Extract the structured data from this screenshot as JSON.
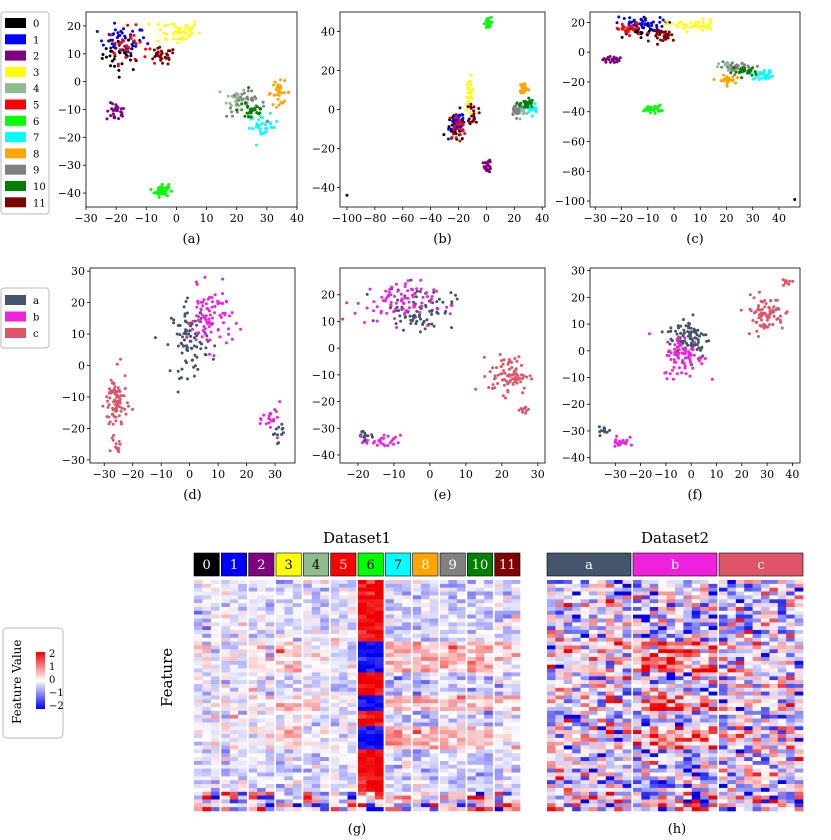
{
  "scatter_row1": {
    "legend": [
      {
        "label": "0",
        "color": "#000000"
      },
      {
        "label": "1",
        "color": "#0000ff"
      },
      {
        "label": "2",
        "color": "#800080"
      },
      {
        "label": "3",
        "color": "#ffff00"
      },
      {
        "label": "4",
        "color": "#8fbc8f"
      },
      {
        "label": "5",
        "color": "#ff0000"
      },
      {
        "label": "6",
        "color": "#00ff00"
      },
      {
        "label": "7",
        "color": "#00ffff"
      },
      {
        "label": "8",
        "color": "#ffa500"
      },
      {
        "label": "9",
        "color": "#808080"
      },
      {
        "label": "10",
        "color": "#008000"
      },
      {
        "label": "11",
        "color": "#800000"
      }
    ]
  },
  "scatter_row2": {
    "legend": [
      {
        "label": "a",
        "color": "#44546a"
      },
      {
        "label": "b",
        "color": "#ee22dd"
      },
      {
        "label": "c",
        "color": "#dd5566"
      }
    ]
  },
  "heatmaps": {
    "legend_title": "Feature Value",
    "legend_ticks": [
      "2",
      "1",
      "0",
      "−1",
      "−2"
    ],
    "y_label": "Feature"
  },
  "chart_data": [
    {
      "panel": "(a)",
      "type": "scatter",
      "xlim": [
        -30,
        40
      ],
      "ylim": [
        -45,
        25
      ],
      "xticks": [
        -30,
        -20,
        -10,
        0,
        10,
        20,
        30,
        40
      ],
      "xtick_labels": [
        "−30",
        "−20",
        "−10",
        "0",
        "10",
        "20",
        "30",
        "40"
      ],
      "yticks": [
        20,
        10,
        0,
        -10,
        -20,
        -30,
        -40
      ],
      "ytick_labels": [
        "20",
        "10",
        "0",
        "−10",
        "−20",
        "−30",
        "−40"
      ],
      "clusters": [
        {
          "label": "0",
          "cx": -18,
          "cy": 10,
          "sx": 4,
          "sy": 4,
          "n": 40
        },
        {
          "label": "1",
          "cx": -18,
          "cy": 15,
          "sx": 5,
          "sy": 3,
          "n": 40
        },
        {
          "label": "2",
          "cx": -20,
          "cy": -11,
          "sx": 2,
          "sy": 2,
          "n": 30
        },
        {
          "label": "3",
          "cx": 0,
          "cy": 18,
          "sx": 5,
          "sy": 3,
          "n": 45
        },
        {
          "label": "4",
          "cx": 20,
          "cy": -6,
          "sx": 2,
          "sy": 2.5,
          "n": 25
        },
        {
          "label": "5",
          "cx": -16,
          "cy": 13,
          "sx": 4,
          "sy": 4,
          "n": 30
        },
        {
          "label": "6",
          "cx": -5,
          "cy": -39,
          "sx": 1.5,
          "sy": 1.5,
          "n": 40
        },
        {
          "label": "7",
          "cx": 29,
          "cy": -16,
          "sx": 3,
          "sy": 2.5,
          "n": 30
        },
        {
          "label": "8",
          "cx": 34,
          "cy": -4,
          "sx": 2.5,
          "sy": 2.5,
          "n": 30
        },
        {
          "label": "9",
          "cx": 23,
          "cy": -8,
          "sx": 4,
          "sy": 3,
          "n": 30
        },
        {
          "label": "10",
          "cx": 25,
          "cy": -10,
          "sx": 3,
          "sy": 3,
          "n": 30
        },
        {
          "label": "11",
          "cx": -5,
          "cy": 9,
          "sx": 3,
          "sy": 2,
          "n": 30
        }
      ]
    },
    {
      "panel": "(b)",
      "type": "scatter",
      "xlim": [
        -105,
        42
      ],
      "ylim": [
        -50,
        50
      ],
      "xticks": [
        -100,
        -80,
        -60,
        -40,
        -20,
        0,
        20,
        40
      ],
      "xtick_labels": [
        "−100",
        "−80",
        "−60",
        "−40",
        "−20",
        "0",
        "20",
        "40"
      ],
      "yticks": [
        40,
        20,
        0,
        -20,
        -40
      ],
      "ytick_labels": [
        "40",
        "20",
        "0",
        "−20",
        "−40"
      ],
      "clusters": [
        {
          "label": "0",
          "cx": -22,
          "cy": -10,
          "sx": 4,
          "sy": 4,
          "n": 30
        },
        {
          "label": "1",
          "cx": -20,
          "cy": -7,
          "sx": 4,
          "sy": 4,
          "n": 35
        },
        {
          "label": "2",
          "cx": 1,
          "cy": -29,
          "sx": 1.5,
          "sy": 2,
          "n": 25
        },
        {
          "label": "3",
          "cx": -12,
          "cy": 8,
          "sx": 2,
          "sy": 5,
          "n": 30
        },
        {
          "label": "4",
          "cx": 25,
          "cy": 0,
          "sx": 2,
          "sy": 1.5,
          "n": 20
        },
        {
          "label": "5",
          "cx": -21,
          "cy": -9,
          "sx": 4,
          "sy": 4,
          "n": 25
        },
        {
          "label": "6",
          "cx": 1,
          "cy": 44,
          "sx": 1.5,
          "sy": 2,
          "n": 30
        },
        {
          "label": "7",
          "cx": 31,
          "cy": 1,
          "sx": 3,
          "sy": 3,
          "n": 30
        },
        {
          "label": "8",
          "cx": 27,
          "cy": 11,
          "sx": 2,
          "sy": 2,
          "n": 25
        },
        {
          "label": "9",
          "cx": 22,
          "cy": 0,
          "sx": 3,
          "sy": 2,
          "n": 25
        },
        {
          "label": "10",
          "cx": 29,
          "cy": 3,
          "sx": 3,
          "sy": 2,
          "n": 25
        },
        {
          "label": "11",
          "cx": -9,
          "cy": -2,
          "sx": 2,
          "sy": 4,
          "n": 20
        }
      ],
      "outliers": [
        {
          "label": "0",
          "x": -100,
          "y": -44
        }
      ]
    },
    {
      "panel": "(c)",
      "type": "scatter",
      "xlim": [
        -32,
        48
      ],
      "ylim": [
        -104,
        27
      ],
      "xticks": [
        -30,
        -20,
        -10,
        0,
        10,
        20,
        30,
        40
      ],
      "xtick_labels": [
        "−30",
        "−20",
        "−10",
        "0",
        "10",
        "20",
        "30",
        "40"
      ],
      "yticks": [
        20,
        0,
        -20,
        -40,
        -60,
        -80,
        -100
      ],
      "ytick_labels": [
        "20",
        "0",
        "−20",
        "−40",
        "−60",
        "−80",
        "−100"
      ],
      "clusters": [
        {
          "label": "0",
          "cx": -14,
          "cy": 16,
          "sx": 5,
          "sy": 4,
          "n": 35
        },
        {
          "label": "1",
          "cx": -13,
          "cy": 19,
          "sx": 6,
          "sy": 3,
          "n": 40
        },
        {
          "label": "2",
          "cx": -24,
          "cy": -5,
          "sx": 2,
          "sy": 1.5,
          "n": 25
        },
        {
          "label": "3",
          "cx": 7,
          "cy": 18,
          "sx": 6,
          "sy": 2.5,
          "n": 40
        },
        {
          "label": "4",
          "cx": 22,
          "cy": -10,
          "sx": 3,
          "sy": 2,
          "n": 20
        },
        {
          "label": "5",
          "cx": -17,
          "cy": 15,
          "sx": 4,
          "sy": 3,
          "n": 25
        },
        {
          "label": "6",
          "cx": -8,
          "cy": -38,
          "sx": 2,
          "sy": 1.5,
          "n": 30
        },
        {
          "label": "7",
          "cx": 34,
          "cy": -15,
          "sx": 3,
          "sy": 2,
          "n": 30
        },
        {
          "label": "8",
          "cx": 20,
          "cy": -19,
          "sx": 2,
          "sy": 2,
          "n": 25
        },
        {
          "label": "9",
          "cx": 25,
          "cy": -10,
          "sx": 5,
          "sy": 2,
          "n": 30
        },
        {
          "label": "10",
          "cx": 27,
          "cy": -13,
          "sx": 3,
          "sy": 2,
          "n": 25
        },
        {
          "label": "11",
          "cx": -3,
          "cy": 11,
          "sx": 3,
          "sy": 2.5,
          "n": 30
        }
      ],
      "outliers": [
        {
          "label": "0",
          "x": 46,
          "y": -99
        }
      ]
    },
    {
      "panel": "(d)",
      "type": "scatter",
      "xlim": [
        -35,
        37
      ],
      "ylim": [
        -31,
        31
      ],
      "xticks": [
        -30,
        -20,
        -10,
        0,
        10,
        20,
        30
      ],
      "xtick_labels": [
        "−30",
        "−20",
        "−10",
        "0",
        "10",
        "20",
        "30"
      ],
      "yticks": [
        30,
        20,
        10,
        0,
        -10,
        -20,
        -30
      ],
      "ytick_labels": [
        "30",
        "20",
        "10",
        "0",
        "−10",
        "−20",
        "−30"
      ],
      "clusters": [
        {
          "label": "a",
          "cx": 0,
          "cy": 8,
          "sx": 4,
          "sy": 7,
          "n": 90
        },
        {
          "label": "a",
          "cx": 31,
          "cy": -21,
          "sx": 1.5,
          "sy": 2,
          "n": 12
        },
        {
          "label": "b",
          "cx": 7,
          "cy": 15,
          "sx": 5,
          "sy": 6,
          "n": 90
        },
        {
          "label": "b",
          "cx": 29,
          "cy": -17,
          "sx": 2,
          "sy": 3,
          "n": 20
        },
        {
          "label": "c",
          "cx": -26,
          "cy": -12,
          "sx": 2.5,
          "sy": 6,
          "n": 80
        },
        {
          "label": "c",
          "cx": -26,
          "cy": -26,
          "sx": 1,
          "sy": 1.5,
          "n": 12
        }
      ]
    },
    {
      "panel": "(e)",
      "type": "scatter",
      "xlim": [
        -25,
        32
      ],
      "ylim": [
        -43,
        30
      ],
      "xticks": [
        -20,
        -10,
        0,
        10,
        20,
        30
      ],
      "xtick_labels": [
        "−20",
        "−10",
        "0",
        "10",
        "20",
        "30"
      ],
      "yticks": [
        20,
        10,
        0,
        -10,
        -20,
        -30,
        -40
      ],
      "ytick_labels": [
        "20",
        "10",
        "0",
        "−10",
        "−20",
        "−30",
        "−40"
      ],
      "clusters": [
        {
          "label": "a",
          "cx": -3,
          "cy": 15,
          "sx": 6,
          "sy": 5,
          "n": 80
        },
        {
          "label": "a",
          "cx": -18,
          "cy": -33,
          "sx": 2,
          "sy": 1.5,
          "n": 15
        },
        {
          "label": "b",
          "cx": -10,
          "cy": 17,
          "sx": 7,
          "sy": 5,
          "n": 80
        },
        {
          "label": "b",
          "cx": -13,
          "cy": -35,
          "sx": 3,
          "sy": 1.5,
          "n": 25
        },
        {
          "label": "c",
          "cx": 22,
          "cy": -10,
          "sx": 3.5,
          "sy": 4.5,
          "n": 80
        },
        {
          "label": "c",
          "cx": 26,
          "cy": -23,
          "sx": 1,
          "sy": 1,
          "n": 10
        }
      ]
    },
    {
      "panel": "(f)",
      "type": "scatter",
      "xlim": [
        -40,
        43
      ],
      "ylim": [
        -42,
        31
      ],
      "xticks": [
        -30,
        -20,
        -10,
        0,
        10,
        20,
        30,
        40
      ],
      "xtick_labels": [
        "−30",
        "−20",
        "−10",
        "0",
        "10",
        "20",
        "30",
        "40"
      ],
      "yticks": [
        30,
        20,
        10,
        0,
        -10,
        -20,
        -30,
        -40
      ],
      "ytick_labels": [
        "30",
        "20",
        "10",
        "0",
        "−10",
        "−20",
        "−30",
        "−40"
      ],
      "clusters": [
        {
          "label": "a",
          "cx": -1,
          "cy": 5,
          "sx": 5,
          "sy": 5,
          "n": 90
        },
        {
          "label": "a",
          "cx": -34,
          "cy": -30,
          "sx": 1.5,
          "sy": 1,
          "n": 12
        },
        {
          "label": "b",
          "cx": -3,
          "cy": -2,
          "sx": 5,
          "sy": 5,
          "n": 80
        },
        {
          "label": "b",
          "cx": -28,
          "cy": -34,
          "sx": 2,
          "sy": 2,
          "n": 20
        },
        {
          "label": "c",
          "cx": 29,
          "cy": 14,
          "sx": 5,
          "sy": 4,
          "n": 80
        },
        {
          "label": "c",
          "cx": 38,
          "cy": 26,
          "sx": 1,
          "sy": 1,
          "n": 10
        }
      ]
    },
    {
      "panel": "(g)",
      "type": "heatmap",
      "title": "Dataset1",
      "groups": [
        "0",
        "1",
        "2",
        "3",
        "4",
        "5",
        "6",
        "7",
        "8",
        "9",
        "10",
        "11"
      ],
      "value_range": [
        -2,
        2
      ],
      "group_means": [
        -0.4,
        -0.6,
        -0.3,
        0.1,
        -0.2,
        -0.5,
        2.0,
        0.3,
        0.4,
        0.2,
        0.3,
        -0.1
      ],
      "n_features": 60
    },
    {
      "panel": "(h)",
      "type": "heatmap",
      "title": "Dataset2",
      "groups": [
        "a",
        "b",
        "c"
      ],
      "value_range": [
        -2,
        2
      ],
      "group_means": [
        -0.2,
        0.8,
        -0.3
      ],
      "n_features": 60
    }
  ]
}
